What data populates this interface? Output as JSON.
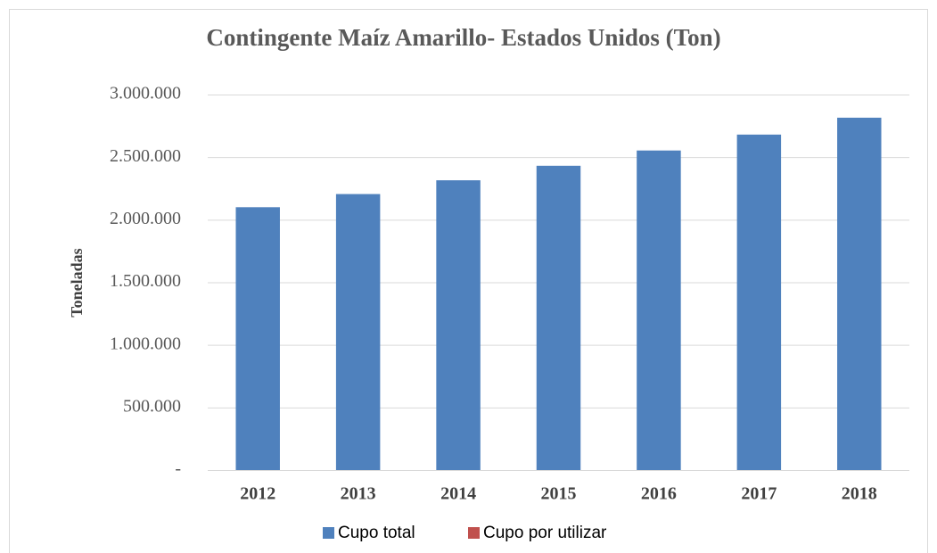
{
  "chart_data": {
    "type": "bar",
    "stacked": true,
    "title": "Contingente Maíz Amarillo- Estados Unidos (Ton)",
    "y_label": "Toneladas",
    "categories": [
      "2012",
      "2013",
      "2014",
      "2015",
      "2016",
      "2017",
      "2018"
    ],
    "series": [
      {
        "name": "Cupo total",
        "color": "#4f81bd",
        "values": [
          2100000,
          2205000,
          2315000,
          2431000,
          2553000,
          2680000,
          2815000
        ]
      },
      {
        "name": "Cupo por utilizar",
        "color": "#c0504d",
        "values": [
          0,
          0,
          0,
          0,
          0,
          0,
          0
        ]
      }
    ],
    "ylim": [
      0,
      3000000
    ],
    "yticks": [
      {
        "value": 0,
        "label": "-"
      },
      {
        "value": 500000,
        "label": "500.000"
      },
      {
        "value": 1000000,
        "label": "1.000.000"
      },
      {
        "value": 1500000,
        "label": "1.500.000"
      },
      {
        "value": 2000000,
        "label": "2.000.000"
      },
      {
        "value": 2500000,
        "label": "2.500.000"
      },
      {
        "value": 3000000,
        "label": "3.000.000"
      }
    ],
    "grid": true,
    "legend": "bottom"
  }
}
